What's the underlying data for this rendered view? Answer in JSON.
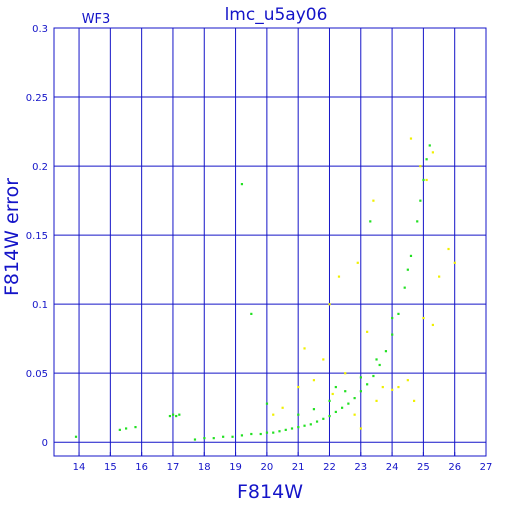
{
  "chart_data": {
    "type": "scatter",
    "title": "lmc_u5ay06",
    "subtitle": "WF3",
    "xlabel": "F814W",
    "ylabel": "F814W error",
    "xlim": [
      13.2,
      27
    ],
    "ylim": [
      -0.01,
      0.3
    ],
    "xticks": [
      14,
      15,
      16,
      17,
      18,
      19,
      20,
      21,
      22,
      23,
      24,
      25,
      26,
      27
    ],
    "yticks": [
      0,
      0.05,
      0.1,
      0.15,
      0.2,
      0.25,
      0.3
    ],
    "ytick_labels": [
      "0",
      "0.05",
      "0.1",
      "0.15",
      "0.2",
      "0.25",
      "0.3"
    ],
    "grid": true,
    "colors": {
      "axis": "#1414c8",
      "series_main": "#22e022",
      "series_outliers": "#f0f000"
    },
    "series": [
      {
        "color": "#22e022",
        "points": [
          [
            13.9,
            0.004
          ],
          [
            15.3,
            0.009
          ],
          [
            15.5,
            0.01
          ],
          [
            15.8,
            0.011
          ],
          [
            16.9,
            0.019
          ],
          [
            17.0,
            0.02
          ],
          [
            17.1,
            0.019
          ],
          [
            17.2,
            0.02
          ],
          [
            17.7,
            0.002
          ],
          [
            18.0,
            0.003
          ],
          [
            18.3,
            0.003
          ],
          [
            18.6,
            0.004
          ],
          [
            18.9,
            0.004
          ],
          [
            19.2,
            0.005
          ],
          [
            19.5,
            0.006
          ],
          [
            19.8,
            0.006
          ],
          [
            20.0,
            0.007
          ],
          [
            20.2,
            0.007
          ],
          [
            20.4,
            0.008
          ],
          [
            20.6,
            0.009
          ],
          [
            20.8,
            0.01
          ],
          [
            21.0,
            0.011
          ],
          [
            21.2,
            0.012
          ],
          [
            21.4,
            0.013
          ],
          [
            21.6,
            0.015
          ],
          [
            21.8,
            0.017
          ],
          [
            22.0,
            0.019
          ],
          [
            22.2,
            0.022
          ],
          [
            22.4,
            0.025
          ],
          [
            22.6,
            0.028
          ],
          [
            22.8,
            0.032
          ],
          [
            23.0,
            0.037
          ],
          [
            23.2,
            0.042
          ],
          [
            23.4,
            0.048
          ],
          [
            23.6,
            0.056
          ],
          [
            23.8,
            0.066
          ],
          [
            24.0,
            0.078
          ],
          [
            24.2,
            0.093
          ],
          [
            24.4,
            0.112
          ],
          [
            24.6,
            0.135
          ],
          [
            24.8,
            0.16
          ],
          [
            24.9,
            0.175
          ],
          [
            25.0,
            0.19
          ],
          [
            25.1,
            0.205
          ],
          [
            25.2,
            0.215
          ],
          [
            21.0,
            0.02
          ],
          [
            21.5,
            0.024
          ],
          [
            22.0,
            0.03
          ],
          [
            22.5,
            0.037
          ],
          [
            23.0,
            0.047
          ],
          [
            23.5,
            0.06
          ],
          [
            24.0,
            0.09
          ],
          [
            24.5,
            0.125
          ],
          [
            19.2,
            0.187
          ],
          [
            19.5,
            0.093
          ],
          [
            22.2,
            0.04
          ],
          [
            20.0,
            0.028
          ],
          [
            23.3,
            0.16
          ]
        ]
      },
      {
        "color": "#f0f000",
        "points": [
          [
            20.2,
            0.02
          ],
          [
            20.5,
            0.025
          ],
          [
            21.0,
            0.04
          ],
          [
            21.2,
            0.068
          ],
          [
            21.5,
            0.045
          ],
          [
            21.8,
            0.06
          ],
          [
            22.0,
            0.1
          ],
          [
            22.1,
            0.035
          ],
          [
            22.3,
            0.12
          ],
          [
            22.5,
            0.05
          ],
          [
            22.8,
            0.02
          ],
          [
            23.0,
            0.01
          ],
          [
            23.2,
            0.08
          ],
          [
            23.5,
            0.03
          ],
          [
            23.7,
            0.04
          ],
          [
            24.0,
            0.038
          ],
          [
            24.2,
            0.04
          ],
          [
            24.5,
            0.045
          ],
          [
            24.7,
            0.03
          ],
          [
            25.0,
            0.09
          ],
          [
            25.3,
            0.085
          ],
          [
            25.5,
            0.12
          ],
          [
            25.8,
            0.14
          ],
          [
            26.0,
            0.13
          ],
          [
            24.9,
            0.2
          ],
          [
            25.1,
            0.19
          ],
          [
            25.3,
            0.21
          ],
          [
            24.6,
            0.22
          ],
          [
            23.4,
            0.175
          ],
          [
            22.9,
            0.13
          ]
        ]
      }
    ]
  }
}
